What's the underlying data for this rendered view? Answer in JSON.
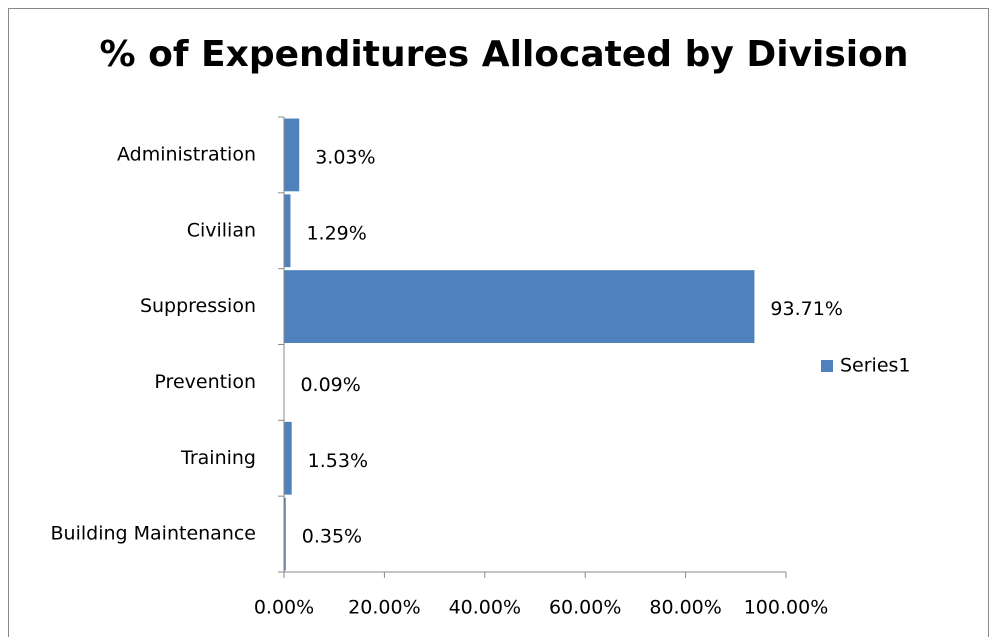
{
  "chart_data": {
    "type": "bar",
    "orientation": "horizontal",
    "title": "% of Expenditures Allocated by Division",
    "categories": [
      "Administration",
      "Civilian",
      "Suppression",
      "Prevention",
      "Training",
      "Building Maintenance"
    ],
    "series": [
      {
        "name": "Series1",
        "color": "#4f81bd",
        "values": [
          3.03,
          1.29,
          93.71,
          0.09,
          1.53,
          0.35
        ],
        "value_labels": [
          "3.03%",
          "1.29%",
          "93.71%",
          "0.09%",
          "1.53%",
          "0.35%"
        ]
      }
    ],
    "xlim": [
      0,
      100
    ],
    "xticks": [
      {
        "value": 0,
        "label": "0.00%"
      },
      {
        "value": 20,
        "label": "20.00%"
      },
      {
        "value": 40,
        "label": "40.00%"
      },
      {
        "value": 60,
        "label": "60.00%"
      },
      {
        "value": 80,
        "label": "80.00%"
      },
      {
        "value": 100,
        "label": "100.00%"
      }
    ],
    "legend": "right"
  }
}
